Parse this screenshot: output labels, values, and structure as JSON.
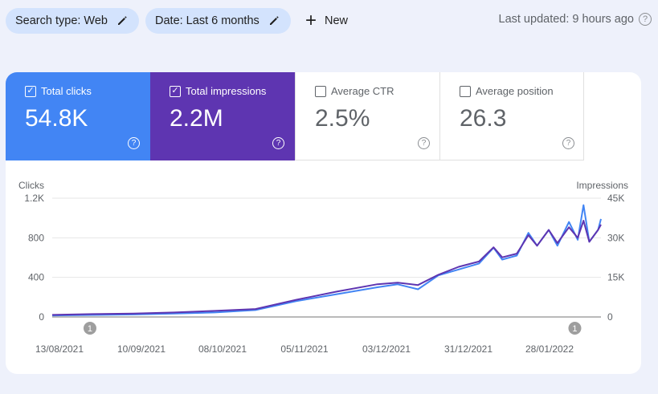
{
  "filters": {
    "search_type": "Search type: Web",
    "date": "Date: Last 6 months",
    "new_label": "New",
    "last_updated": "Last updated: 9 hours ago"
  },
  "metrics": [
    {
      "label": "Total clicks",
      "value": "54.8K",
      "checked": true,
      "color": "#4285f4"
    },
    {
      "label": "Total impressions",
      "value": "2.2M",
      "checked": true,
      "color": "#5e35b1"
    },
    {
      "label": "Average CTR",
      "value": "2.5%",
      "checked": false
    },
    {
      "label": "Average position",
      "value": "26.3",
      "checked": false
    }
  ],
  "help_glyph": "?",
  "annotation_glyph": "1",
  "chart_data": {
    "type": "line",
    "left_axis_label": "Clicks",
    "right_axis_label": "Impressions",
    "left_ticks": [
      "0",
      "400",
      "800",
      "1.2K"
    ],
    "right_ticks": [
      "0",
      "15K",
      "30K",
      "45K"
    ],
    "left_range": [
      0,
      1200
    ],
    "right_range": [
      0,
      45000
    ],
    "x_labels": [
      "13/08/2021",
      "10/09/2021",
      "08/10/2021",
      "05/11/2021",
      "03/12/2021",
      "31/12/2021",
      "28/01/2022"
    ],
    "x_range": [
      "2021-08-13",
      "2022-02-18"
    ],
    "annotations": [
      {
        "date": "2021-08-26",
        "label": "1"
      },
      {
        "date": "2022-02-09",
        "label": "1"
      }
    ],
    "grid": true,
    "series": [
      {
        "name": "Clicks",
        "axis": "left",
        "color": "#4285f4",
        "points": [
          [
            "2021-08-13",
            15
          ],
          [
            "2021-08-27",
            20
          ],
          [
            "2021-09-10",
            25
          ],
          [
            "2021-09-24",
            35
          ],
          [
            "2021-10-08",
            45
          ],
          [
            "2021-10-22",
            70
          ],
          [
            "2021-11-05",
            160
          ],
          [
            "2021-11-19",
            230
          ],
          [
            "2021-12-03",
            300
          ],
          [
            "2021-12-10",
            330
          ],
          [
            "2021-12-17",
            280
          ],
          [
            "2021-12-24",
            420
          ],
          [
            "2021-12-31",
            480
          ],
          [
            "2022-01-07",
            540
          ],
          [
            "2022-01-12",
            700
          ],
          [
            "2022-01-15",
            580
          ],
          [
            "2022-01-20",
            620
          ],
          [
            "2022-01-24",
            850
          ],
          [
            "2022-01-27",
            720
          ],
          [
            "2022-01-31",
            880
          ],
          [
            "2022-02-03",
            720
          ],
          [
            "2022-02-07",
            960
          ],
          [
            "2022-02-10",
            780
          ],
          [
            "2022-02-12",
            1130
          ],
          [
            "2022-02-14",
            760
          ],
          [
            "2022-02-17",
            880
          ],
          [
            "2022-02-18",
            990
          ]
        ]
      },
      {
        "name": "Impressions",
        "axis": "right",
        "color": "#5e35b1",
        "points": [
          [
            "2021-08-13",
            800
          ],
          [
            "2021-08-27",
            1100
          ],
          [
            "2021-09-10",
            1300
          ],
          [
            "2021-09-24",
            1700
          ],
          [
            "2021-10-08",
            2300
          ],
          [
            "2021-10-22",
            3000
          ],
          [
            "2021-11-05",
            6500
          ],
          [
            "2021-11-19",
            9600
          ],
          [
            "2021-12-03",
            12400
          ],
          [
            "2021-12-10",
            13000
          ],
          [
            "2021-12-17",
            12100
          ],
          [
            "2021-12-24",
            16000
          ],
          [
            "2021-12-31",
            19000
          ],
          [
            "2022-01-07",
            21000
          ],
          [
            "2022-01-12",
            26400
          ],
          [
            "2022-01-15",
            22600
          ],
          [
            "2022-01-20",
            24000
          ],
          [
            "2022-01-24",
            31000
          ],
          [
            "2022-01-27",
            27000
          ],
          [
            "2022-01-31",
            33000
          ],
          [
            "2022-02-03",
            28000
          ],
          [
            "2022-02-07",
            34000
          ],
          [
            "2022-02-10",
            30000
          ],
          [
            "2022-02-12",
            36500
          ],
          [
            "2022-02-14",
            28500
          ],
          [
            "2022-02-17",
            33000
          ],
          [
            "2022-02-18",
            35000
          ]
        ]
      }
    ]
  }
}
